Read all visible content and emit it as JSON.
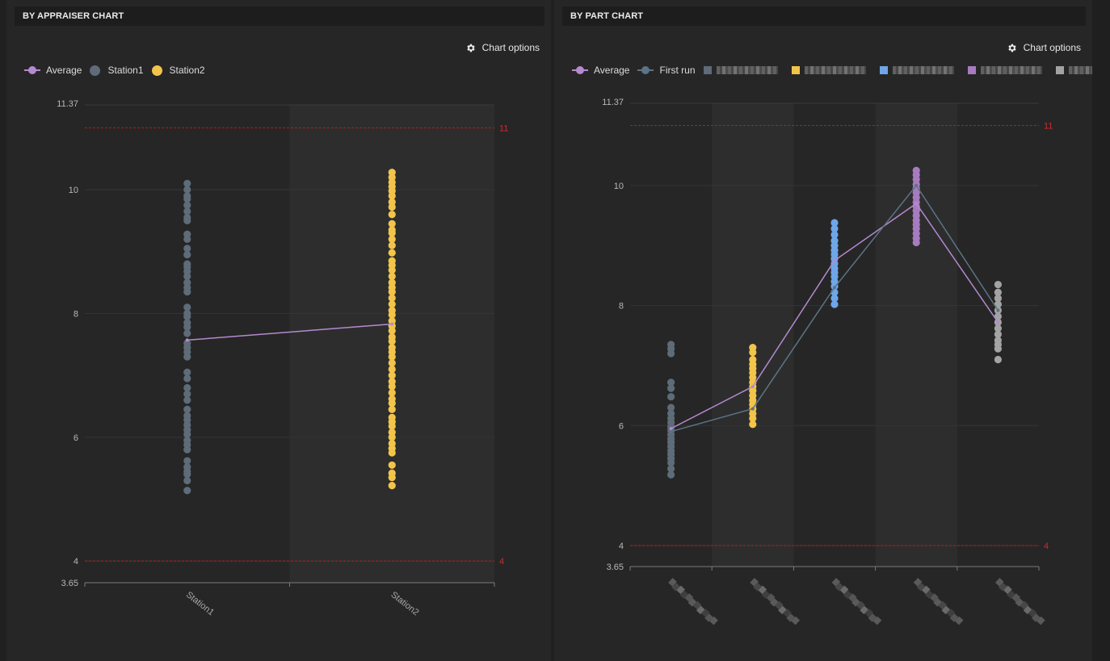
{
  "panels": {
    "left": {
      "title": "BY APPRAISER CHART",
      "chart_options": "Chart options"
    },
    "right": {
      "title": "BY PART CHART",
      "chart_options": "Chart options"
    }
  },
  "colors": {
    "average": "#b48ad0",
    "station1": "#5e6b78",
    "station2": "#f2c44a",
    "first_run": "#5c7485",
    "part1": "#5e6b78",
    "part2": "#f2c44a",
    "part3": "#6ea6e8",
    "part4": "#a77bbf",
    "part5": "#a3a3a3",
    "limit": "#c0191b"
  },
  "chart_data": [
    {
      "type": "scatter",
      "title": "BY APPRAISER CHART",
      "legend": {
        "placement": "top-left",
        "entries": [
          {
            "label": "Average",
            "kind": "line",
            "color": "#b48ad0"
          },
          {
            "label": "Station1",
            "kind": "dot",
            "color": "#5e6b78"
          },
          {
            "label": "Station2",
            "kind": "dot",
            "color": "#f2c44a"
          }
        ]
      },
      "categories": [
        "Station1",
        "Station2"
      ],
      "y_ticks": [
        "10",
        "8",
        "6",
        "4"
      ],
      "y_min_label": "3.65",
      "y_max_label": "11.37",
      "ylim": [
        3.65,
        11.37
      ],
      "limits": [
        {
          "value": 11,
          "label": "11"
        },
        {
          "value": 4,
          "label": "4"
        }
      ],
      "series": [
        {
          "name": "Station1",
          "category": "Station1",
          "color": "#5e6b78",
          "values": [
            10.1,
            10.0,
            9.9,
            9.85,
            9.75,
            9.65,
            9.55,
            9.5,
            9.28,
            9.2,
            9.05,
            8.95,
            8.8,
            8.75,
            8.68,
            8.6,
            8.5,
            8.42,
            8.35,
            8.1,
            8.0,
            7.95,
            7.85,
            7.78,
            7.68,
            7.52,
            7.45,
            7.38,
            7.3,
            7.05,
            6.95,
            6.8,
            6.7,
            6.6,
            6.45,
            6.35,
            6.28,
            6.2,
            6.12,
            6.05,
            5.95,
            5.88,
            5.8,
            5.62,
            5.52,
            5.45,
            5.4,
            5.3,
            5.14
          ]
        },
        {
          "name": "Station2",
          "category": "Station2",
          "color": "#f2c44a",
          "values": [
            10.28,
            10.2,
            10.12,
            10.05,
            9.98,
            9.9,
            9.8,
            9.72,
            9.6,
            9.45,
            9.35,
            9.3,
            9.2,
            9.1,
            8.98,
            8.85,
            8.78,
            8.7,
            8.6,
            8.5,
            8.42,
            8.35,
            8.25,
            8.15,
            8.05,
            7.98,
            7.88,
            7.8,
            7.72,
            7.62,
            7.55,
            7.45,
            7.38,
            7.3,
            7.2,
            7.1,
            7.0,
            6.9,
            6.82,
            6.72,
            6.62,
            6.55,
            6.45,
            6.32,
            6.25,
            6.18,
            6.08,
            6.0,
            5.9,
            5.82,
            5.75,
            5.55,
            5.42,
            5.35,
            5.22
          ]
        },
        {
          "name": "Average",
          "kind": "line",
          "color": "#b48ad0",
          "values": [
            7.57,
            7.83
          ]
        }
      ]
    },
    {
      "type": "scatter",
      "title": "BY PART CHART",
      "legend": {
        "placement": "top-left",
        "entries": [
          {
            "label": "Average",
            "kind": "line",
            "color": "#b48ad0"
          },
          {
            "label": "First run",
            "kind": "line",
            "color": "#5c7485"
          }
        ]
      },
      "categories": [
        "",
        "",
        "",
        "",
        ""
      ],
      "y_ticks": [
        "10",
        "8",
        "6",
        "4"
      ],
      "y_min_label": "3.65",
      "y_max_label": "11.37",
      "ylim": [
        3.65,
        11.37
      ],
      "limits": [
        {
          "value": 11,
          "label": "11"
        },
        {
          "value": 4,
          "label": "4"
        }
      ],
      "series": [
        {
          "name": "",
          "category_index": 0,
          "color": "#5e6b78",
          "values": [
            7.35,
            7.28,
            7.2,
            6.72,
            6.62,
            6.48,
            6.3,
            6.2,
            6.12,
            6.05,
            5.98,
            5.92,
            5.85,
            5.78,
            5.72,
            5.65,
            5.58,
            5.52,
            5.45,
            5.38,
            5.28,
            5.18
          ]
        },
        {
          "name": "",
          "category_index": 1,
          "color": "#f2c44a",
          "values": [
            7.3,
            7.22,
            7.1,
            7.02,
            6.95,
            6.88,
            6.8,
            6.72,
            6.65,
            6.58,
            6.5,
            6.42,
            6.35,
            6.28,
            6.2,
            6.12,
            6.02
          ]
        },
        {
          "name": "",
          "category_index": 2,
          "color": "#6ea6e8",
          "values": [
            9.38,
            9.28,
            9.18,
            9.08,
            9.0,
            8.92,
            8.85,
            8.78,
            8.7,
            8.62,
            8.55,
            8.48,
            8.4,
            8.32,
            8.22,
            8.12,
            8.02
          ]
        },
        {
          "name": "",
          "category_index": 3,
          "color": "#a77bbf",
          "values": [
            10.25,
            10.18,
            10.1,
            10.02,
            9.95,
            9.88,
            9.8,
            9.72,
            9.65,
            9.58,
            9.5,
            9.42,
            9.35,
            9.28,
            9.2,
            9.12,
            9.05
          ]
        },
        {
          "name": "",
          "category_index": 4,
          "color": "#a3a3a3",
          "values": [
            8.35,
            8.22,
            8.12,
            8.02,
            7.92,
            7.82,
            7.72,
            7.62,
            7.52,
            7.42,
            7.35,
            7.28,
            7.1
          ]
        },
        {
          "name": "Average",
          "kind": "line",
          "color": "#b48ad0",
          "values": [
            5.95,
            6.65,
            8.75,
            9.7,
            7.72
          ]
        },
        {
          "name": "First run",
          "kind": "line",
          "color": "#5c7485",
          "values": [
            5.9,
            6.28,
            8.3,
            10.0,
            7.92
          ]
        }
      ]
    }
  ]
}
